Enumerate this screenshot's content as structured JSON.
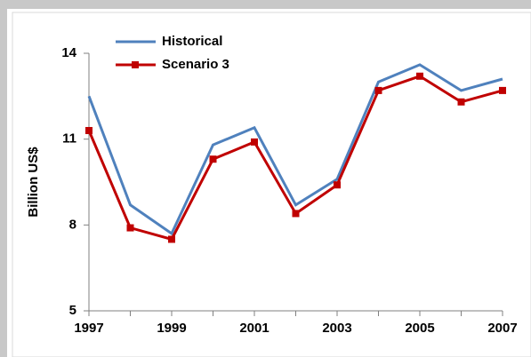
{
  "chart_data": {
    "type": "line",
    "ylabel": "Billion US$",
    "categories": [
      "1997",
      null,
      "1999",
      null,
      "2001",
      null,
      "2003",
      null,
      "2005",
      null,
      "2007"
    ],
    "series": [
      {
        "name": "Historical",
        "color": "#4f81bd",
        "marker": "none",
        "values": [
          12.5,
          8.7,
          7.7,
          10.8,
          11.4,
          8.7,
          9.6,
          13.0,
          13.6,
          12.7,
          13.1
        ]
      },
      {
        "name": "Scenario 3",
        "color": "#c00000",
        "marker": "square",
        "values": [
          11.3,
          7.9,
          7.5,
          10.3,
          10.9,
          8.4,
          9.4,
          12.7,
          13.2,
          12.3,
          12.7
        ]
      }
    ],
    "ylim": [
      5,
      14
    ],
    "yticks": [
      5,
      8,
      11,
      14
    ],
    "grid": false,
    "legend": "top-left"
  }
}
